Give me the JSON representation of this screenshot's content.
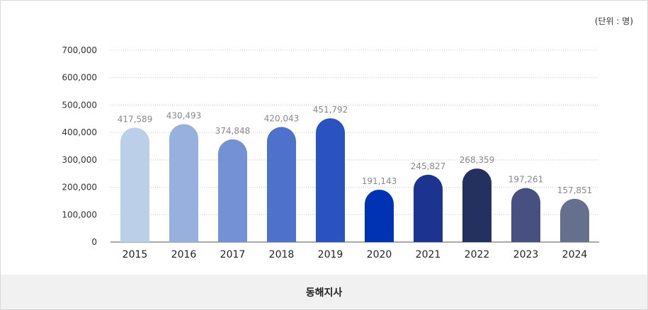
{
  "unit_label": "(단위 : 명)",
  "footer_label": "동해지사",
  "colors": [
    "#bccfe8",
    "#97b0de",
    "#7391d4",
    "#4e72cb",
    "#2a53c1",
    "#0033b3",
    "#1c3490",
    "#243060",
    "#475080",
    "#65708f"
  ],
  "chart_data": {
    "type": "bar",
    "title": "",
    "xlabel": "",
    "ylabel": "",
    "ylim": [
      0,
      700000
    ],
    "yticks": [
      0,
      100000,
      200000,
      300000,
      400000,
      500000,
      600000,
      700000
    ],
    "ytick_labels": [
      "0",
      "100,000",
      "200,000",
      "300,000",
      "400,000",
      "500,000",
      "600,000",
      "700,000"
    ],
    "categories": [
      "2015",
      "2016",
      "2017",
      "2018",
      "2019",
      "2020",
      "2021",
      "2022",
      "2023",
      "2024"
    ],
    "values": [
      417589,
      430493,
      374848,
      420043,
      451792,
      191143,
      245827,
      268359,
      197261,
      157851
    ],
    "value_labels": [
      "417,589",
      "430,493",
      "374,848",
      "420,043",
      "451,792",
      "191,143",
      "245,827",
      "268,359",
      "197,261",
      "157,851"
    ],
    "grid": true
  }
}
